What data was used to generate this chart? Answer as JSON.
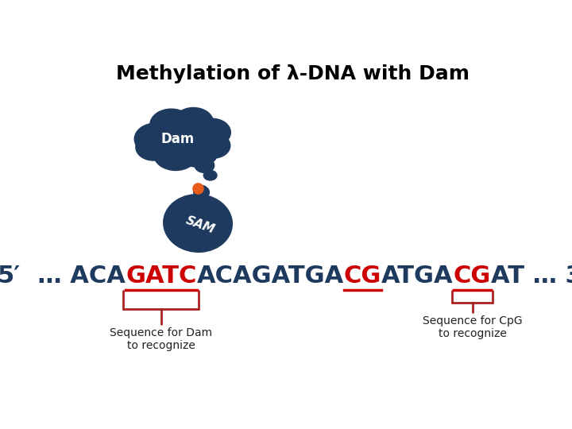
{
  "title": "Methylation of λ-DNA with Dam",
  "title_fontsize": 18,
  "title_color": "#000000",
  "title_fontweight": "bold",
  "background_color": "#ffffff",
  "dam_cloud_color": "#1e3a5f",
  "dam_label": "Dam",
  "dam_label_color": "#ffffff",
  "dam_label_fontsize": 12,
  "sam_blob_color": "#1e3a5f",
  "sam_label": "SAM",
  "sam_label_color": "#ffffff",
  "sam_label_fontsize": 11,
  "orange_dot_color": "#e85c1a",
  "line_color": "#bbbbbb",
  "sequence_fontsize": 22,
  "sequence_dark_blue": "#1e3a5f",
  "sequence_red": "#cc0000",
  "bracket_color": "#aa2222",
  "label1_text": "Sequence for Dam\nto recognize",
  "label2_text": "Sequence for CpG\nto recognize",
  "label_fontsize": 10
}
